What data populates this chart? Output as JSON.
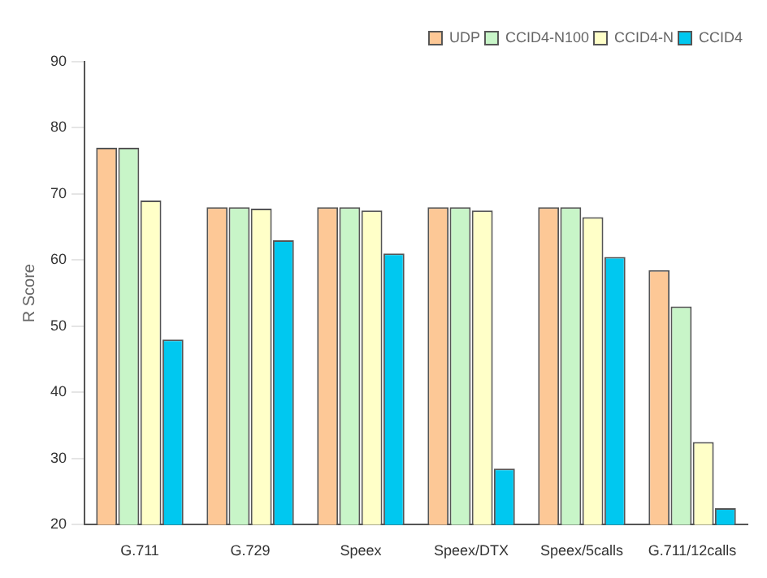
{
  "chart_data": {
    "type": "bar",
    "ylabel": "R Score",
    "categories": [
      "G.711",
      "G.729",
      "Speex",
      "Speex/DTX",
      "Speex/5calls",
      "G.711/12calls"
    ],
    "series": [
      {
        "name": "UDP",
        "color": "#fdc896",
        "values": [
          77,
          68,
          68,
          68,
          68,
          58.5
        ]
      },
      {
        "name": "CCID4-N100",
        "color": "#c8f5c8",
        "values": [
          77,
          68,
          68,
          68,
          68,
          53
        ]
      },
      {
        "name": "CCID4-N",
        "color": "#ffffc8",
        "values": [
          69,
          67.8,
          67.5,
          67.5,
          66.5,
          32.5
        ]
      },
      {
        "name": "CCID4",
        "color": "#00c8f0",
        "values": [
          48,
          63,
          61,
          28.5,
          60.5,
          22.5
        ]
      }
    ],
    "ylim": [
      20,
      90
    ],
    "yticks": [
      20,
      30,
      40,
      50,
      60,
      70,
      80,
      90
    ],
    "grid": false,
    "legend": "top right"
  }
}
